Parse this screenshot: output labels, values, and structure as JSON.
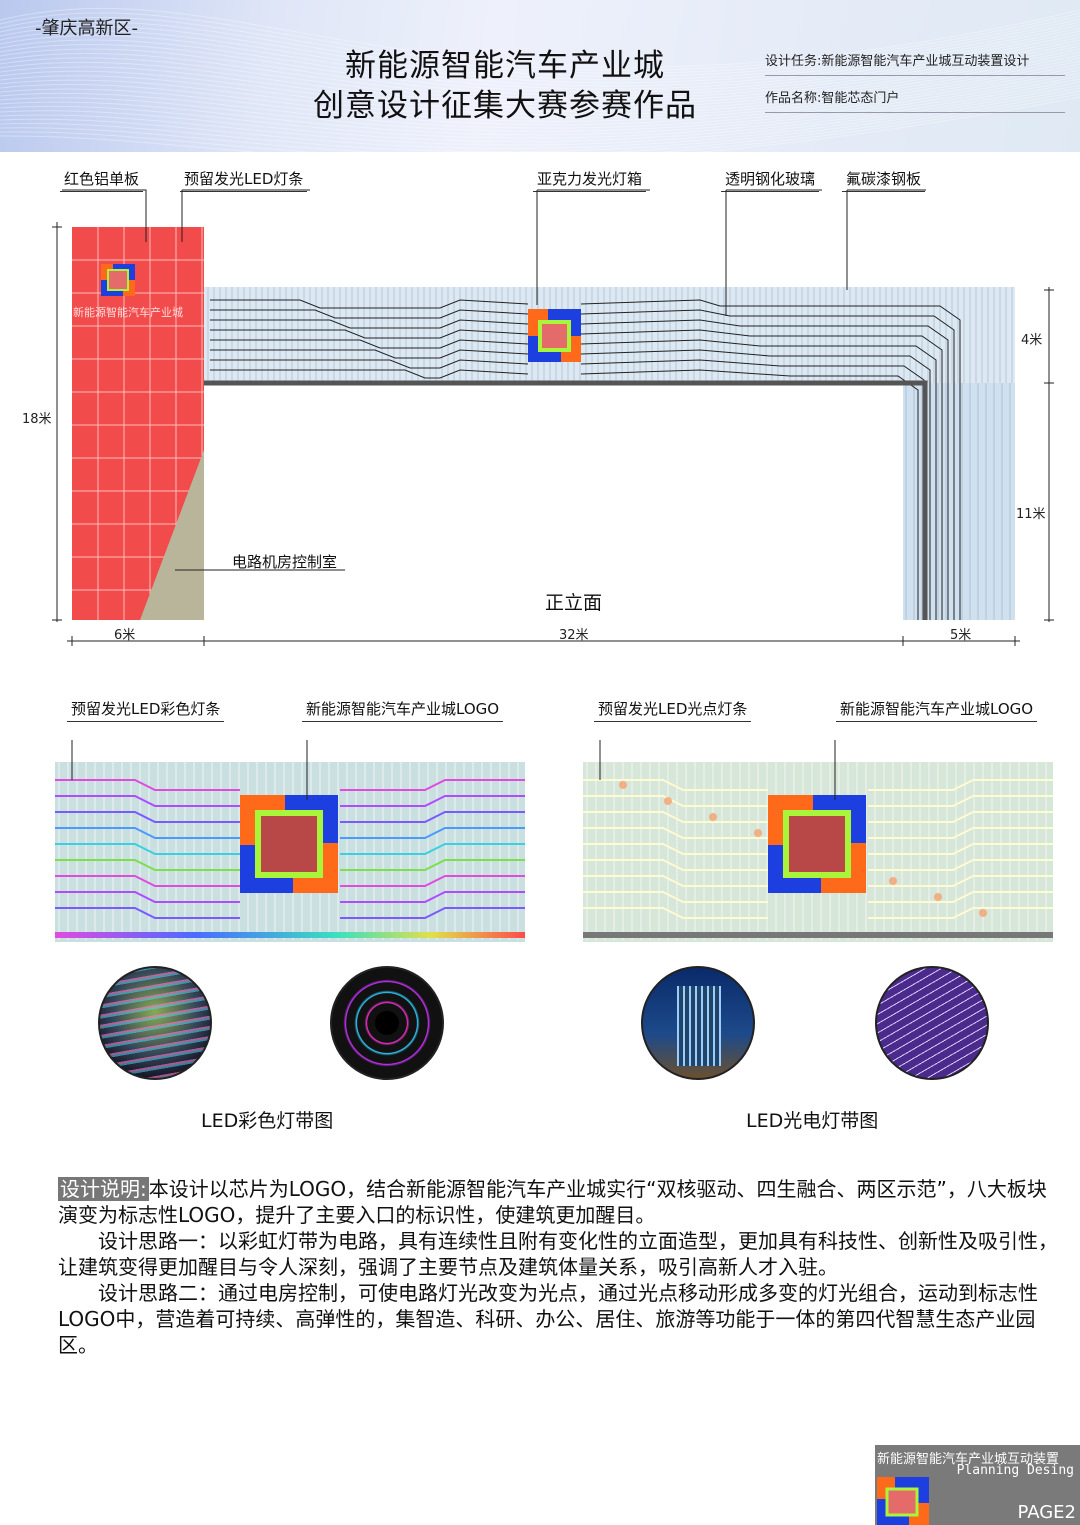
{
  "header": {
    "region": "-肇庆高新区-",
    "title_line1": "新能源智能汽车产业城",
    "title_line2": "创意设计征集大赛参赛作品",
    "task": "设计任务:新能源智能汽车产业城互动装置设计",
    "work_name": "作品名称:智能芯态门户"
  },
  "elevation": {
    "title": "正立面",
    "labels": {
      "red_panel": "红色铝单板",
      "led_strip": "预留发光LED灯条",
      "acrylic_box": "亚克力发光灯箱",
      "glass": "透明钢化玻璃",
      "steel": "氟碳漆钢板",
      "control_room": "电路机房控制室",
      "panel_text": "新能源智能汽车产业城"
    },
    "dimensions": {
      "height_total": "18米",
      "band_height": "4米",
      "leg_height": "11米",
      "left_width": "6米",
      "span_width": "32米",
      "right_width": "5米"
    }
  },
  "details": {
    "left": {
      "label_strip": "预留发光LED彩色灯条",
      "label_logo": "新能源智能汽车产业城LOGO",
      "caption": "LED彩色灯带图"
    },
    "right": {
      "label_strip": "预留发光LED光点灯条",
      "label_logo": "新能源智能汽车产业城LOGO",
      "caption": "LED光电灯带图"
    }
  },
  "description": {
    "heading": "设计说明:",
    "p1": "本设计以芯片为LOGO，结合新能源智能汽车产业城实行“双核驱动、四生融合、两区示范”，八大板块演变为标志性LOGO，提升了主要入口的标识性，使建筑更加醒目。",
    "p2": "设计思路一：以彩虹灯带为电路，具有连续性且附有变化性的立面造型，更加具有科技性、创新性及吸引性，让建筑变得更加醒目与令人深刻，强调了主要节点及建筑体量关系，吸引高新人才入驻。",
    "p3": "设计思路二：通过电房控制，可使电路灯光改变为光点，通过光点移动形成多变的灯光组合，运动到标志性LOGO中，营造着可持续、高弹性的，集智造、科研、办公、居住、旅游等功能于一体的第四代智慧生态产业园区。"
  },
  "footer": {
    "title": "新能源智能汽车产业城互动装置",
    "subtitle": "Planning Desing",
    "page": "PAGE2"
  },
  "colors": {
    "red_panel": "#f24b4b",
    "logo_blue": "#1d3fe0",
    "logo_orange": "#ff6a1a",
    "logo_green": "#a8f53a",
    "logo_pink": "#e56b6b",
    "footer_bg": "#7a7a7a"
  }
}
